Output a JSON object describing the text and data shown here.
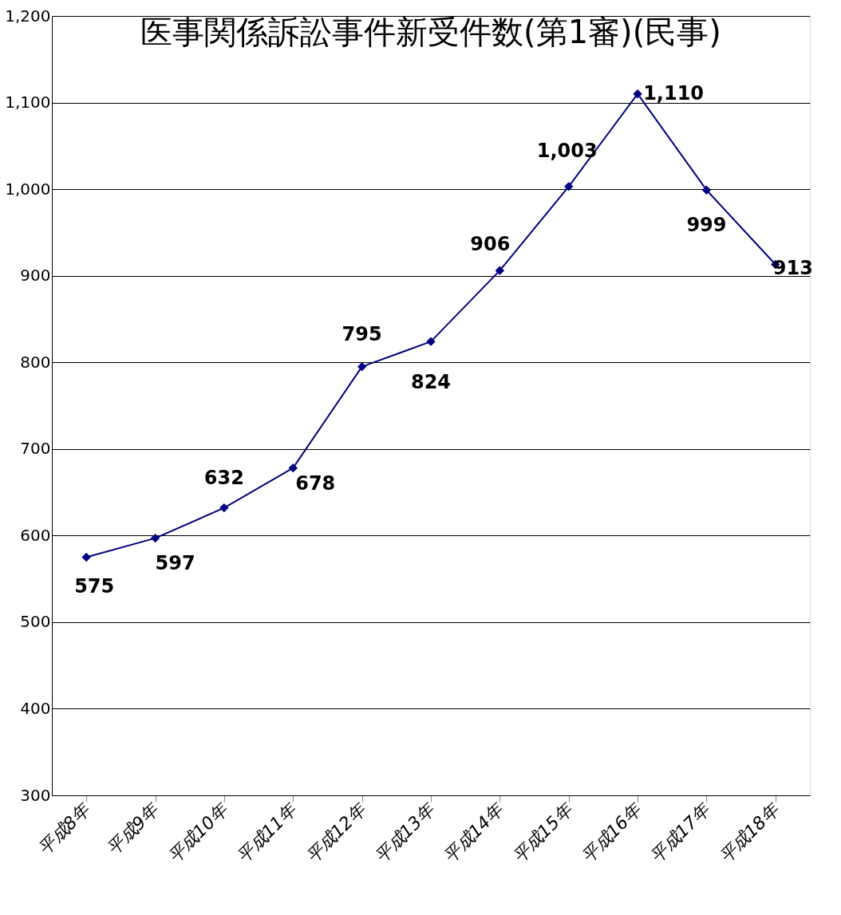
{
  "chart_data": {
    "type": "line",
    "title": "医事関係訴訟事件新受件数(第1審)(民事)",
    "categories": [
      "平成8年",
      "平成9年",
      "平成10年",
      "平成11年",
      "平成12年",
      "平成13年",
      "平成14年",
      "平成15年",
      "平成16年",
      "平成17年",
      "平成18年"
    ],
    "series": [
      {
        "color": "#000080",
        "values": [
          575,
          597,
          632,
          678,
          795,
          824,
          906,
          1003,
          1110,
          999,
          913
        ],
        "value_labels": [
          "575",
          "597",
          "632",
          "678",
          "795",
          "824",
          "906",
          "1,003",
          "1,110",
          "999",
          "913"
        ]
      }
    ],
    "ylim": [
      300,
      1200
    ],
    "yticks": [
      300,
      400,
      500,
      600,
      700,
      800,
      900,
      {
        "value": 1000,
        "label": "1,000"
      },
      {
        "value": 1100,
        "label": "1,100"
      },
      {
        "value": 1200,
        "label": "1,200"
      }
    ],
    "grid": "y",
    "marker": "diamond",
    "line_style": "solid"
  }
}
